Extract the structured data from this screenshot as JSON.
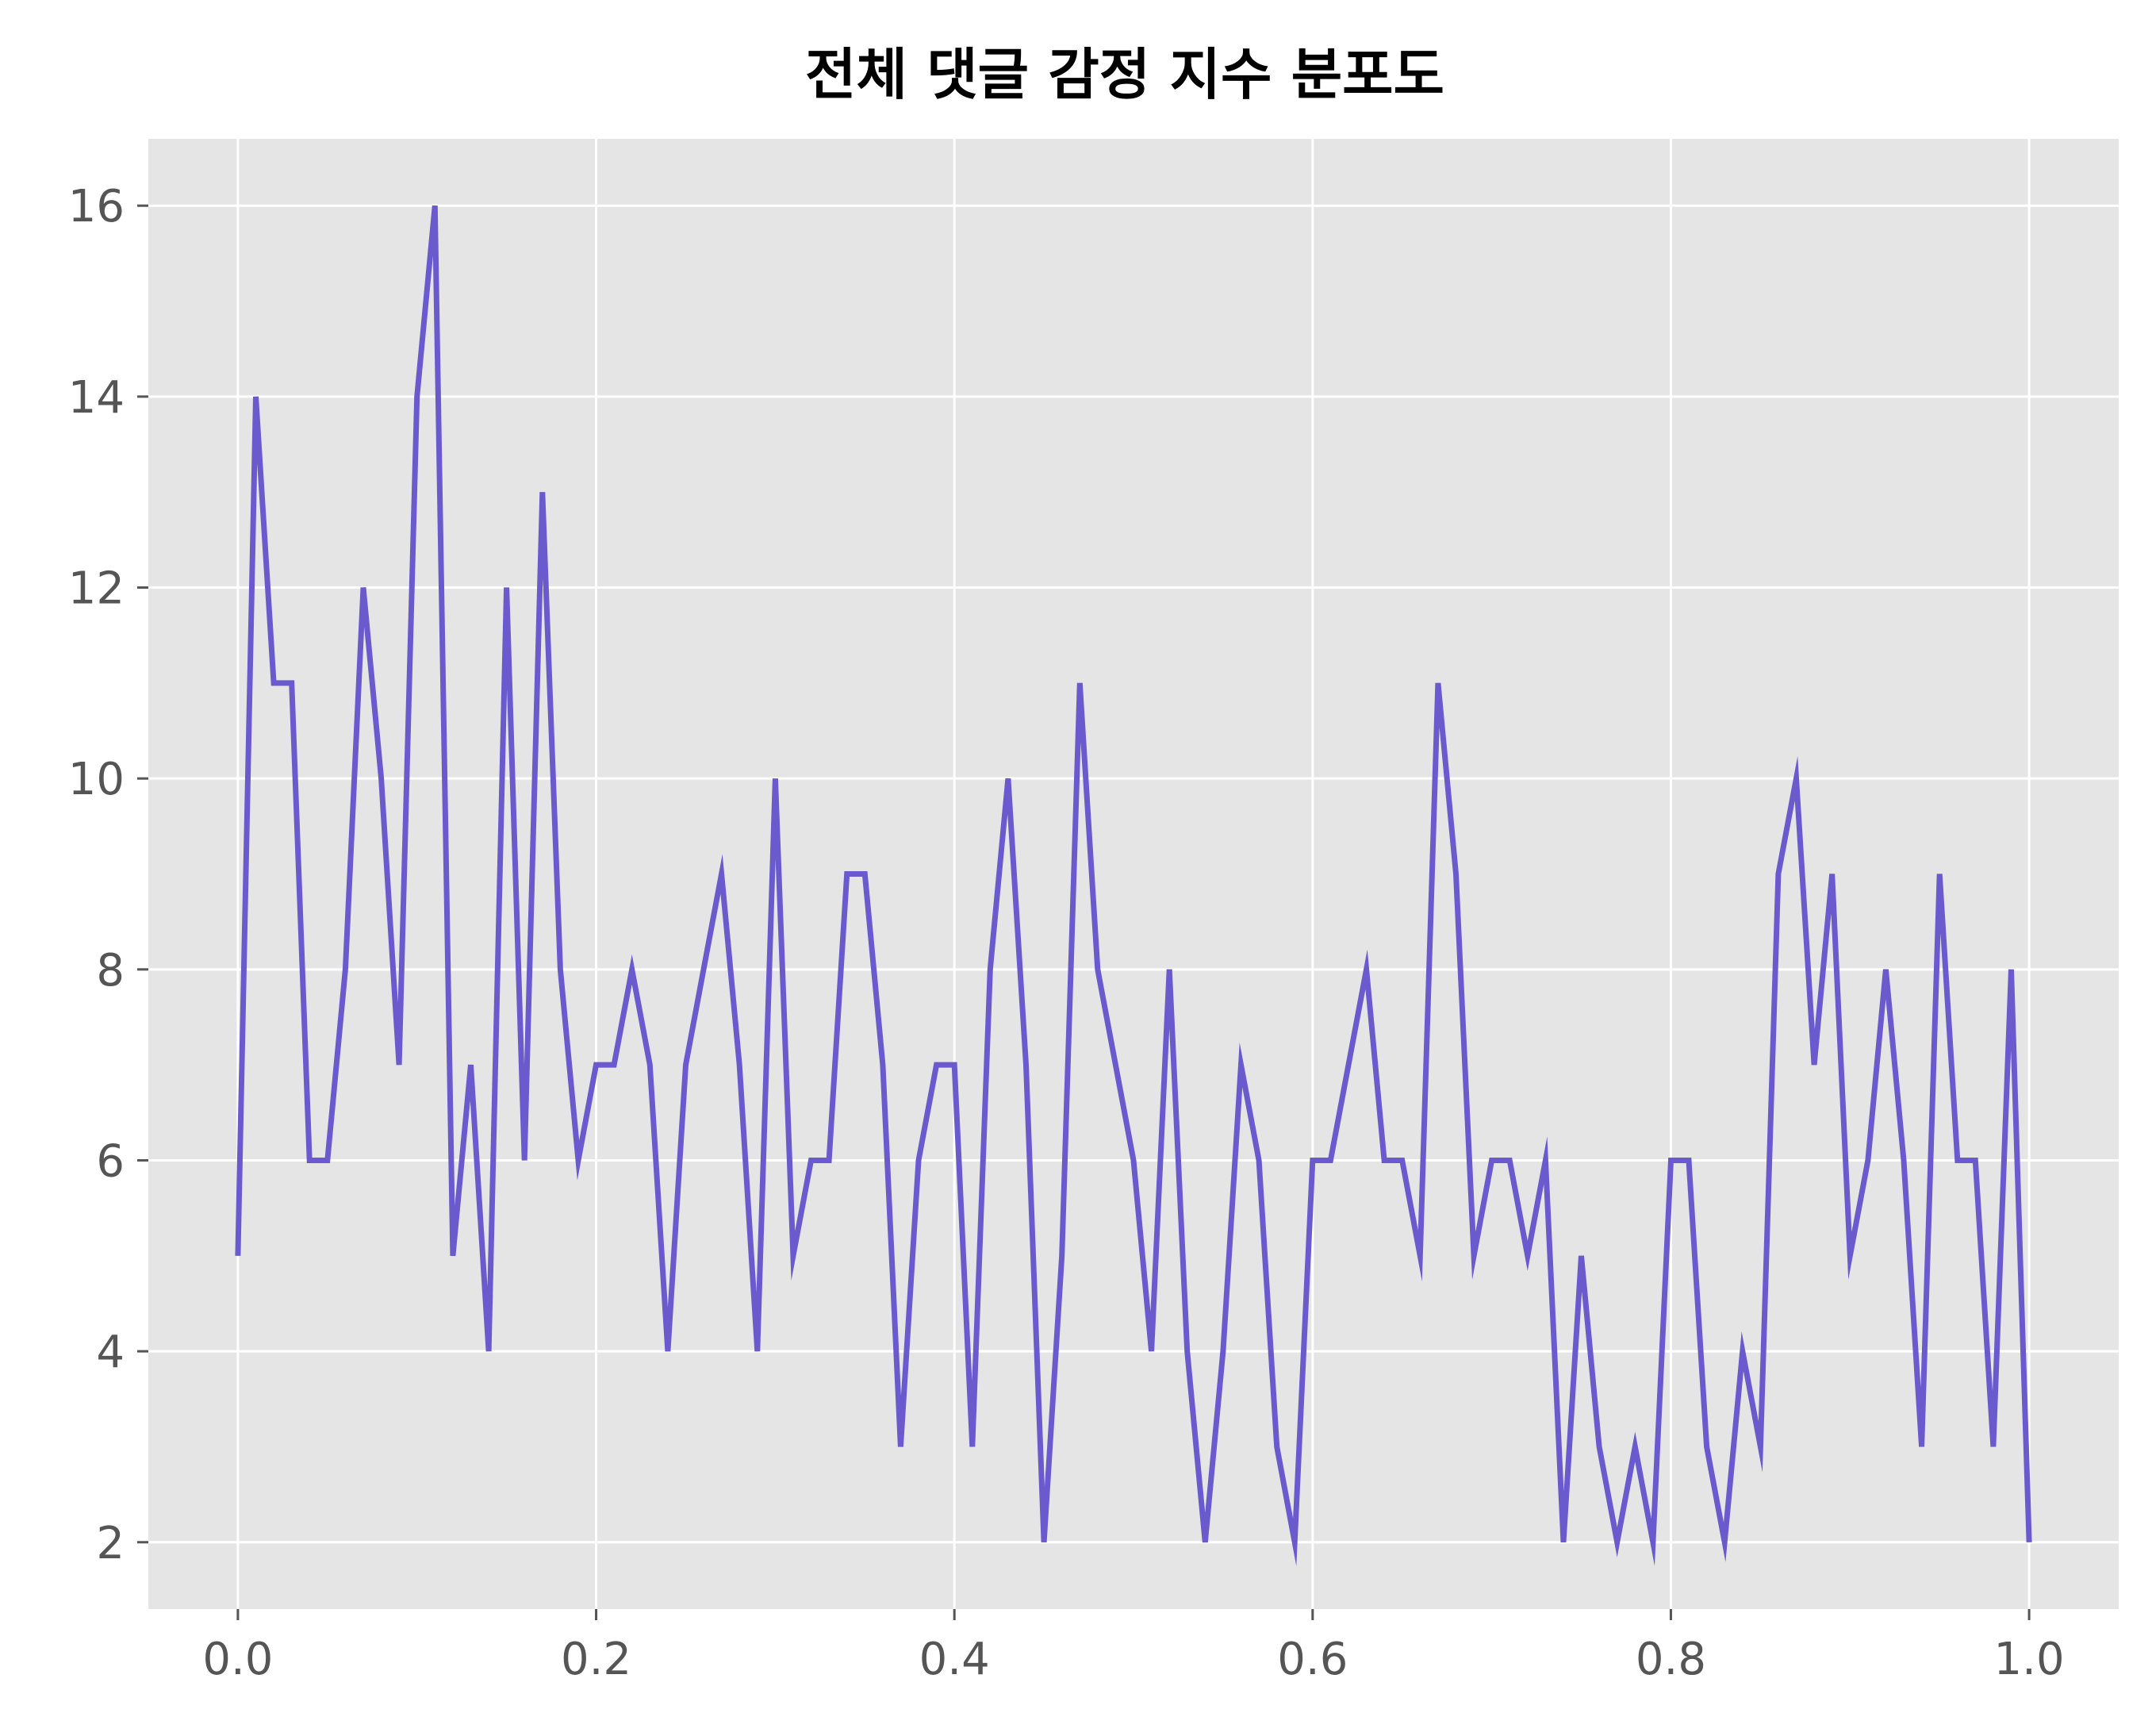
{
  "chart_data": {
    "type": "line",
    "title": "전체 댓글 감정 지수 분포도",
    "xlabel": "",
    "ylabel": "",
    "xlim": [
      -0.05,
      1.05
    ],
    "ylim": [
      1.3,
      16.7
    ],
    "xticks": [
      0.0,
      0.2,
      0.4,
      0.6,
      0.8,
      1.0
    ],
    "xtick_labels": [
      "0.0",
      "0.2",
      "0.4",
      "0.6",
      "0.8",
      "1.0"
    ],
    "yticks": [
      2,
      4,
      6,
      8,
      10,
      12,
      14,
      16
    ],
    "ytick_labels": [
      "2",
      "4",
      "6",
      "8",
      "10",
      "12",
      "14",
      "16"
    ],
    "grid": true,
    "style": "ggplot",
    "colors": {
      "line": "#6a5acd",
      "background": "#e5e5e5",
      "grid": "#ffffff"
    },
    "x": [
      0.0,
      0.01,
      0.02,
      0.03,
      0.04,
      0.05,
      0.06,
      0.07,
      0.08,
      0.09,
      0.1,
      0.11,
      0.12,
      0.13,
      0.14,
      0.15,
      0.16,
      0.17,
      0.18,
      0.19,
      0.2,
      0.21,
      0.22,
      0.23,
      0.24,
      0.25,
      0.26,
      0.27,
      0.28,
      0.29,
      0.3,
      0.31,
      0.32,
      0.33,
      0.34,
      0.35,
      0.36,
      0.37,
      0.38,
      0.39,
      0.4,
      0.41,
      0.42,
      0.43,
      0.44,
      0.45,
      0.46,
      0.47,
      0.48,
      0.49,
      0.5,
      0.51,
      0.52,
      0.53,
      0.54,
      0.55,
      0.56,
      0.57,
      0.58,
      0.59,
      0.6,
      0.61,
      0.62,
      0.63,
      0.64,
      0.65,
      0.66,
      0.67,
      0.68,
      0.69,
      0.7,
      0.71,
      0.72,
      0.73,
      0.74,
      0.75,
      0.76,
      0.77,
      0.78,
      0.79,
      0.8,
      0.81,
      0.82,
      0.83,
      0.84,
      0.85,
      0.86,
      0.87,
      0.88,
      0.89,
      0.9,
      0.91,
      0.92,
      0.93,
      0.94,
      0.95,
      0.96,
      0.97,
      0.98,
      0.99,
      1.0
    ],
    "series": [
      {
        "values": [
          5,
          14,
          11,
          11,
          6,
          6,
          8,
          12,
          10,
          7,
          14,
          16,
          5,
          7,
          4,
          12,
          6,
          13,
          8,
          6,
          7,
          7,
          8,
          7,
          4,
          7,
          8,
          9,
          7,
          4,
          10,
          5,
          6,
          6,
          9,
          9,
          7,
          3,
          6,
          7,
          7,
          3,
          8,
          10,
          7,
          2,
          5,
          11,
          8,
          7,
          6,
          4,
          8,
          4,
          2,
          4,
          7,
          6,
          3,
          2,
          6,
          6,
          7,
          8,
          6,
          6,
          5,
          11,
          9,
          5,
          6,
          6,
          5,
          6,
          2,
          5,
          3,
          2,
          3,
          2,
          6,
          6,
          3,
          2,
          4,
          3,
          9,
          10,
          7,
          9,
          5,
          6,
          8,
          6,
          3,
          9,
          6,
          6,
          3,
          8,
          2
        ]
      }
    ]
  }
}
